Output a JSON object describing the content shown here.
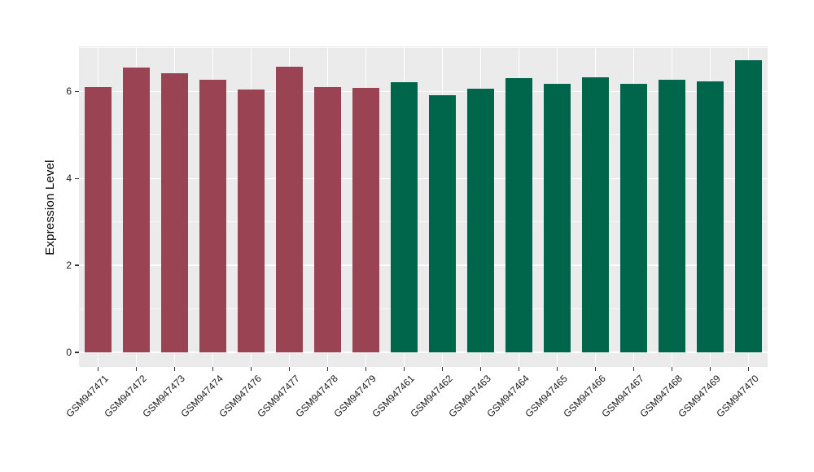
{
  "chart_data": {
    "type": "bar",
    "title": "",
    "xlabel": "",
    "ylabel": "Expression Level",
    "categories": [
      "GSM947471",
      "GSM947472",
      "GSM947473",
      "GSM947474",
      "GSM947476",
      "GSM947477",
      "GSM947478",
      "GSM947479",
      "GSM947461",
      "GSM947462",
      "GSM947463",
      "GSM947464",
      "GSM947465",
      "GSM947466",
      "GSM947467",
      "GSM947468",
      "GSM947469",
      "GSM947470"
    ],
    "values": [
      6.1,
      6.55,
      6.42,
      6.27,
      6.04,
      6.57,
      6.1,
      6.08,
      6.22,
      5.92,
      6.06,
      6.31,
      6.17,
      6.32,
      6.18,
      6.26,
      6.23,
      6.71
    ],
    "groups": [
      "maroon",
      "maroon",
      "maroon",
      "maroon",
      "maroon",
      "maroon",
      "maroon",
      "maroon",
      "green",
      "green",
      "green",
      "green",
      "green",
      "green",
      "green",
      "green",
      "green",
      "green"
    ],
    "group_colors": {
      "maroon": "#9A4453",
      "green": "#00664B"
    },
    "y_ticks": [
      0,
      2,
      4,
      6
    ],
    "y_minor_ticks": [
      1,
      3,
      5,
      7
    ],
    "ylim": [
      -0.335,
      7.035
    ],
    "bar_width_fraction": 0.71,
    "grid": "on",
    "legend": "none",
    "panel_bg": "#EBEBEB",
    "grid_color": "#FFFFFF",
    "tick_color": "#333333",
    "axis_text_color": "#1A1A1A"
  }
}
